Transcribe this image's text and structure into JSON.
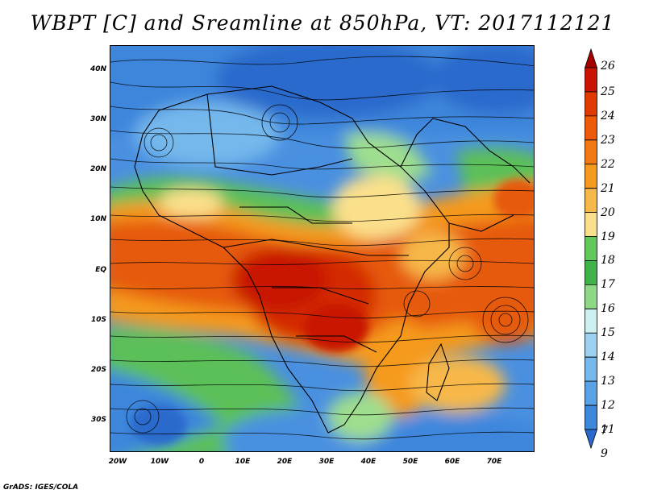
{
  "title": "WBPT [C] and Sreamline at 850hPa, VT: 2017112121",
  "footer": "GrADS: IGES/COLA",
  "lat_labels": [
    "40N",
    "30N",
    "20N",
    "10N",
    "EQ",
    "10S",
    "20S",
    "30S"
  ],
  "lon_labels": [
    "20W",
    "10W",
    "0",
    "10E",
    "20E",
    "30E",
    "40E",
    "50E",
    "60E",
    "70E"
  ],
  "colorbar": {
    "labels": [
      "26",
      "25",
      "24",
      "23",
      "22",
      "21",
      "20",
      "19",
      "18",
      "17",
      "16",
      "15",
      "14",
      "13",
      "12",
      "11",
      "9",
      "7"
    ],
    "colors": [
      "#a50000",
      "#c81400",
      "#e03a00",
      "#ed5a0a",
      "#f27a14",
      "#f59a1e",
      "#f7b84a",
      "#fbe08c",
      "#62c85a",
      "#3fb24a",
      "#8fd888",
      "#cdf0f0",
      "#9cd2f0",
      "#74b8ec",
      "#5aa2e6",
      "#3c86dc",
      "#2a6acc"
    ]
  },
  "colors": {
    "cold_deep": "#1f5fc4",
    "cold": "#4a90e0",
    "cool": "#9cd2f0",
    "green": "#5cc058",
    "light_green": "#9ede8e",
    "yellow": "#fbe08c",
    "orange": "#f59a1e",
    "red_orange": "#e65a10",
    "red": "#d42a06"
  }
}
